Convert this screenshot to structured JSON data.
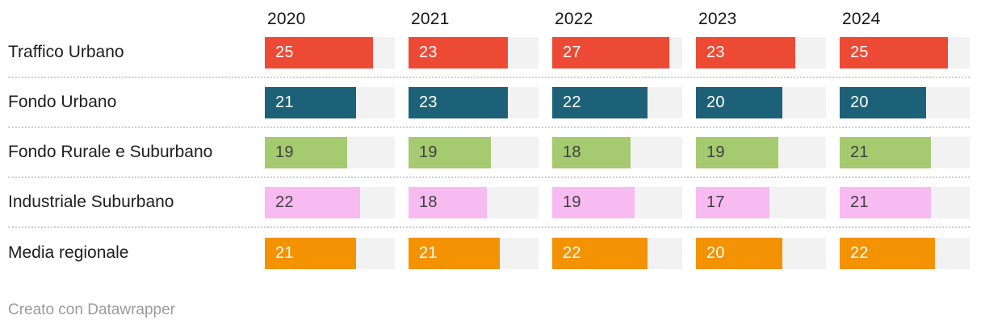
{
  "chart_data": {
    "type": "bar",
    "orientation": "horizontal",
    "categories": [
      "2020",
      "2021",
      "2022",
      "2023",
      "2024"
    ],
    "series": [
      {
        "name": "Traffico Urbano",
        "color": "#ed4a35",
        "text_color": "#ffffff",
        "values": [
          25,
          23,
          27,
          23,
          25
        ]
      },
      {
        "name": "Fondo Urbano",
        "color": "#1d6178",
        "text_color": "#ffffff",
        "values": [
          21,
          23,
          22,
          20,
          20
        ]
      },
      {
        "name": "Fondo Rurale e Suburbano",
        "color": "#a6ca70",
        "text_color": "#404040",
        "values": [
          19,
          19,
          18,
          19,
          21
        ]
      },
      {
        "name": "Industriale Suburbano",
        "color": "#f7baf1",
        "text_color": "#404040",
        "values": [
          22,
          18,
          19,
          17,
          21
        ]
      },
      {
        "name": "Media regionale",
        "color": "#f39203",
        "text_color": "#ffffff",
        "values": [
          21,
          21,
          22,
          20,
          22
        ]
      }
    ],
    "xlim": [
      0,
      30
    ],
    "track_color": "#f2f2f2",
    "grid": false,
    "legend": "none",
    "title": "",
    "xlabel": "",
    "ylabel": ""
  },
  "footer": {
    "attribution": "Creato con Datawrapper"
  }
}
